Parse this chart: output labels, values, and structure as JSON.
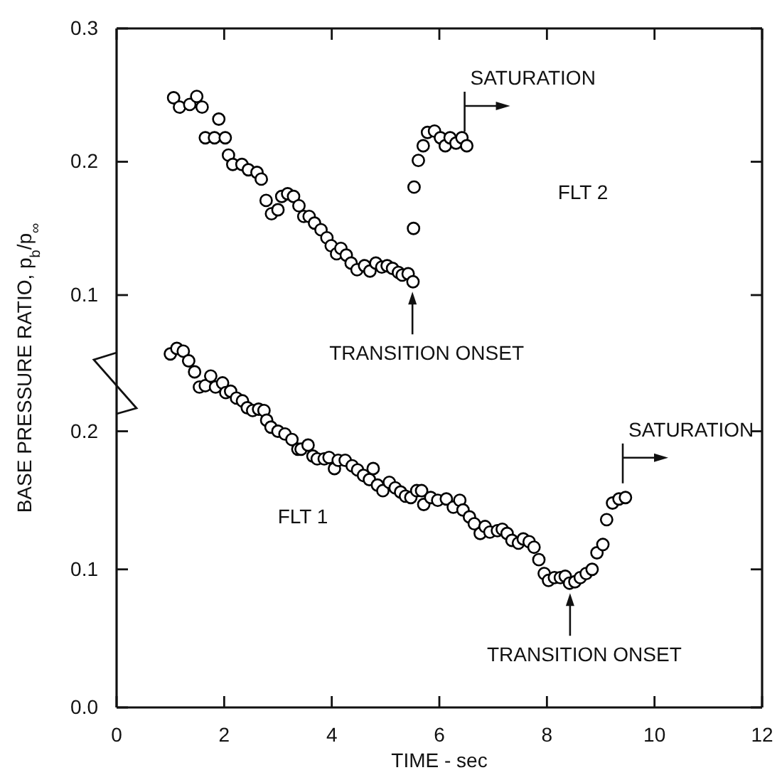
{
  "chart_data": [
    {
      "type": "scatter",
      "xlim": [
        0,
        12
      ],
      "xticks": [
        0,
        2,
        4,
        6,
        8,
        10,
        12
      ],
      "ylim": [
        0.06,
        0.3
      ],
      "yticks": [
        0.1,
        0.2,
        0.3
      ],
      "tick_labels": "y",
      "marker": "circle",
      "grid": false,
      "annotations": [
        {
          "text": "SATURATION",
          "x": 6.47,
          "y": 0.212
        },
        {
          "text": "TRANSITION ONSET",
          "x": 5.5,
          "y": 0.11
        }
      ],
      "series": [
        {
          "name": "FLT 2",
          "color": "#000000",
          "x": [
            1.06,
            1.17,
            1.36,
            1.49,
            1.59,
            1.65,
            1.82,
            1.9,
            2.02,
            2.08,
            2.16,
            2.33,
            2.45,
            2.61,
            2.69,
            2.78,
            2.88,
            3.0,
            3.07,
            3.18,
            3.29,
            3.39,
            3.48,
            3.58,
            3.68,
            3.8,
            3.91,
            3.99,
            4.09,
            4.17,
            4.27,
            4.36,
            4.47,
            4.61,
            4.71,
            4.82,
            4.93,
            5.03,
            5.13,
            5.24,
            5.31,
            5.42,
            5.51,
            5.52,
            5.53,
            5.61,
            5.7,
            5.78,
            5.91,
            6.02,
            6.11,
            6.2,
            6.31,
            6.42,
            6.51
          ],
          "values": [
            0.248,
            0.241,
            0.243,
            0.249,
            0.241,
            0.218,
            0.218,
            0.232,
            0.218,
            0.205,
            0.198,
            0.198,
            0.194,
            0.192,
            0.187,
            0.171,
            0.161,
            0.164,
            0.174,
            0.176,
            0.174,
            0.167,
            0.159,
            0.159,
            0.154,
            0.149,
            0.143,
            0.137,
            0.131,
            0.135,
            0.13,
            0.124,
            0.119,
            0.122,
            0.118,
            0.124,
            0.121,
            0.122,
            0.12,
            0.117,
            0.115,
            0.116,
            0.11,
            0.15,
            0.181,
            0.201,
            0.212,
            0.222,
            0.223,
            0.218,
            0.212,
            0.218,
            0.214,
            0.218,
            0.212
          ]
        }
      ]
    },
    {
      "type": "scatter",
      "xlabel": "TIME - sec",
      "ylabel": "BASE PRESSURE RATIO, p$_{b}$/p$_{∞}$",
      "xlim": [
        0,
        12
      ],
      "xticks": [
        0,
        2,
        4,
        6,
        8,
        10,
        12
      ],
      "ylim": [
        0,
        0.26
      ],
      "yticks": [
        {
          "value": 0,
          "label": "0.0"
        },
        0.1,
        0.2
      ],
      "marker": "circle",
      "grid": false,
      "annotations": [
        {
          "text": "SATURATION",
          "x": 9.41,
          "y": 0.152
        },
        {
          "text": "TRANSITION ONSET",
          "x": 8.43,
          "y": 0.09
        }
      ],
      "series": [
        {
          "name": "FLT 1",
          "color": "#000000",
          "x": [
            1.0,
            1.12,
            1.24,
            1.34,
            1.45,
            1.54,
            1.65,
            1.75,
            1.84,
            1.97,
            2.03,
            2.12,
            2.23,
            2.34,
            2.43,
            2.53,
            2.64,
            2.74,
            2.79,
            2.87,
            3.0,
            3.13,
            3.26,
            3.37,
            3.43,
            3.56,
            3.65,
            3.73,
            3.86,
            3.95,
            4.05,
            4.12,
            4.25,
            4.38,
            4.48,
            4.59,
            4.7,
            4.77,
            4.85,
            4.95,
            5.07,
            5.18,
            5.28,
            5.37,
            5.47,
            5.58,
            5.67,
            5.71,
            5.84,
            5.97,
            6.13,
            6.26,
            6.38,
            6.44,
            6.56,
            6.65,
            6.76,
            6.85,
            6.94,
            7.08,
            7.17,
            7.26,
            7.35,
            7.47,
            7.56,
            7.67,
            7.76,
            7.85,
            7.95,
            8.03,
            8.14,
            8.25,
            8.34,
            8.42,
            8.52,
            8.62,
            8.73,
            8.84,
            8.93,
            9.04,
            9.11,
            9.22,
            9.34,
            9.46
          ],
          "values": [
            0.256,
            0.26,
            0.258,
            0.251,
            0.243,
            0.232,
            0.233,
            0.24,
            0.232,
            0.235,
            0.228,
            0.229,
            0.224,
            0.222,
            0.217,
            0.215,
            0.216,
            0.215,
            0.208,
            0.203,
            0.2,
            0.198,
            0.194,
            0.187,
            0.187,
            0.19,
            0.182,
            0.18,
            0.18,
            0.181,
            0.173,
            0.179,
            0.179,
            0.175,
            0.172,
            0.168,
            0.165,
            0.173,
            0.161,
            0.157,
            0.163,
            0.159,
            0.156,
            0.153,
            0.152,
            0.157,
            0.157,
            0.147,
            0.152,
            0.15,
            0.151,
            0.145,
            0.15,
            0.143,
            0.138,
            0.133,
            0.126,
            0.131,
            0.127,
            0.128,
            0.129,
            0.126,
            0.121,
            0.119,
            0.122,
            0.12,
            0.116,
            0.107,
            0.097,
            0.092,
            0.094,
            0.094,
            0.095,
            0.09,
            0.091,
            0.094,
            0.097,
            0.1,
            0.112,
            0.118,
            0.136,
            0.148,
            0.151,
            0.152
          ]
        }
      ]
    }
  ]
}
